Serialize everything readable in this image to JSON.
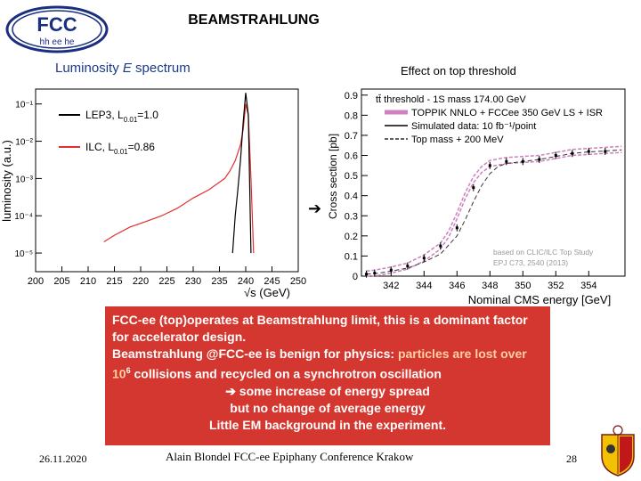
{
  "slide": {
    "title": "BEAMSTRAHLUNG",
    "logo_text_top": "FCC",
    "logo_text_bottom": "hh ee he",
    "left_heading_pre": "Luminosity ",
    "left_heading_em": "E",
    "left_heading_post": " spectrum",
    "right_heading": "Effect on top threshold",
    "arrow_glyph": "➔",
    "textbox": {
      "line1": "FCC-ee (top)operates at Beamstrahlung limit, this is  a dominant factor for accelerator design.",
      "line2_prefix": "Beamstrahlung @FCC-ee is benign for physics:  ",
      "line2_highlight": "particles are lost over 10",
      "line2_sup": "6",
      "line2_suffix": " collisions and recycled on a synchrotron oscillation",
      "line3": "➔ some increase of energy spread",
      "line4": "but no change of average energy",
      "line5": "Little EM background in the experiment."
    },
    "footer_date": "26.11.2020",
    "footer_center": "Alain Blondel  FCC-ee  Epiphany Conference Krakow",
    "page_number": "28"
  },
  "chart_data": [
    {
      "type": "line",
      "ylabel": "luminosity (a.u.)",
      "xlabel": "√s (GeV)",
      "x_ticks": [
        "200",
        "205",
        "210",
        "215",
        "220",
        "225",
        "230",
        "235",
        "240",
        "245",
        "250"
      ],
      "y_ticks": [
        "10⁻⁵",
        "10⁻⁴",
        "10⁻³",
        "10⁻²",
        "10⁻¹"
      ],
      "xlim": [
        200,
        250
      ],
      "ylim_log10": [
        -5.5,
        -0.6
      ],
      "log_y": true,
      "legend_placement": "top-left",
      "legend": [
        {
          "label": "LEP3, L",
          "sub": "0.01",
          "value": "=1.0",
          "color": "#000000"
        },
        {
          "label": "ILC, L",
          "sub": "0.01",
          "value": "=0.86",
          "color": "#e03030"
        }
      ],
      "series": [
        {
          "name": "ILC, L0.01=0.86",
          "color": "#e03030",
          "x": [
            213,
            215,
            218,
            221,
            224,
            227,
            230,
            233,
            235,
            236,
            237,
            238,
            239,
            239.5,
            240,
            240.5,
            241,
            241.5
          ],
          "y": [
            2e-05,
            3e-05,
            5e-05,
            7e-05,
            0.0001,
            0.00016,
            0.0003,
            0.0005,
            0.0008,
            0.001,
            0.0016,
            0.003,
            0.008,
            0.02,
            0.1,
            0.05,
            0.001,
            1e-05
          ]
        },
        {
          "name": "LEP3, L0.01=1.0",
          "color": "#000000",
          "x": [
            237.5,
            238,
            238.5,
            239,
            239.5,
            240,
            240.5,
            241
          ],
          "y": [
            1e-05,
            0.0001,
            0.0005,
            0.003,
            0.03,
            0.2,
            0.05,
            1e-05
          ]
        }
      ]
    },
    {
      "type": "line",
      "ylabel": "Cross section [pb]",
      "xlabel": "Nominal CMS energy [GeV]",
      "x_ticks": [
        "342",
        "344",
        "346",
        "348",
        "350",
        "352",
        "354"
      ],
      "y_ticks": [
        "0",
        "0.1",
        "0.2",
        "0.3",
        "0.4",
        "0.5",
        "0.6",
        "0.7",
        "0.8",
        "0.9"
      ],
      "xlim": [
        340.2,
        356.2
      ],
      "ylim": [
        0,
        0.93
      ],
      "legend_placement": "top-left",
      "legend": [
        {
          "label": "tt̄ threshold - 1S mass 174.00 GeV",
          "style": "header"
        },
        {
          "label": "TOPPIK NNLO + FCCee 350 GeV LS + ISR",
          "style": "band",
          "color": "#d080c0"
        },
        {
          "label": "Simulated data: 10 fb⁻¹/point",
          "style": "points",
          "color": "#000000"
        },
        {
          "label": "Top mass + 200 MeV",
          "style": "dashed",
          "color": "#000000"
        }
      ],
      "annotation_lines": [
        "based on CLIC/ILC Top Study",
        "EPJ C73, 2540 (2013)"
      ],
      "series": [
        {
          "name": "TOPPIK NNLO + FCCee 350 GeV LS + ISR",
          "color": "#d080c0",
          "x": [
            340.5,
            341,
            342,
            343,
            344,
            345,
            345.5,
            346,
            346.5,
            347,
            347.5,
            348,
            349,
            350,
            351,
            352,
            353,
            354,
            355,
            356
          ],
          "y": [
            0.01,
            0.015,
            0.03,
            0.05,
            0.09,
            0.15,
            0.21,
            0.3,
            0.4,
            0.48,
            0.53,
            0.56,
            0.575,
            0.58,
            0.585,
            0.6,
            0.615,
            0.62,
            0.625,
            0.63
          ]
        },
        {
          "name": "Top mass + 200 MeV",
          "color": "#000000",
          "x": [
            340.5,
            341,
            342,
            343,
            344,
            345,
            346,
            346.5,
            347,
            347.5,
            348,
            348.5,
            349,
            350,
            351,
            352,
            353,
            354,
            355,
            356
          ],
          "y": [
            0.01,
            0.012,
            0.025,
            0.04,
            0.07,
            0.11,
            0.2,
            0.28,
            0.37,
            0.45,
            0.51,
            0.545,
            0.56,
            0.57,
            0.58,
            0.595,
            0.61,
            0.618,
            0.622,
            0.628
          ]
        },
        {
          "name": "Simulated data: 10 fb⁻¹/point",
          "color": "#000000",
          "x": [
            340.5,
            341,
            342,
            343,
            344,
            345,
            346,
            347,
            348,
            349,
            350,
            351,
            352,
            353,
            354,
            355
          ],
          "y": [
            0.01,
            0.015,
            0.03,
            0.05,
            0.09,
            0.15,
            0.24,
            0.44,
            0.55,
            0.57,
            0.57,
            0.58,
            0.6,
            0.61,
            0.62,
            0.62
          ]
        }
      ]
    }
  ]
}
